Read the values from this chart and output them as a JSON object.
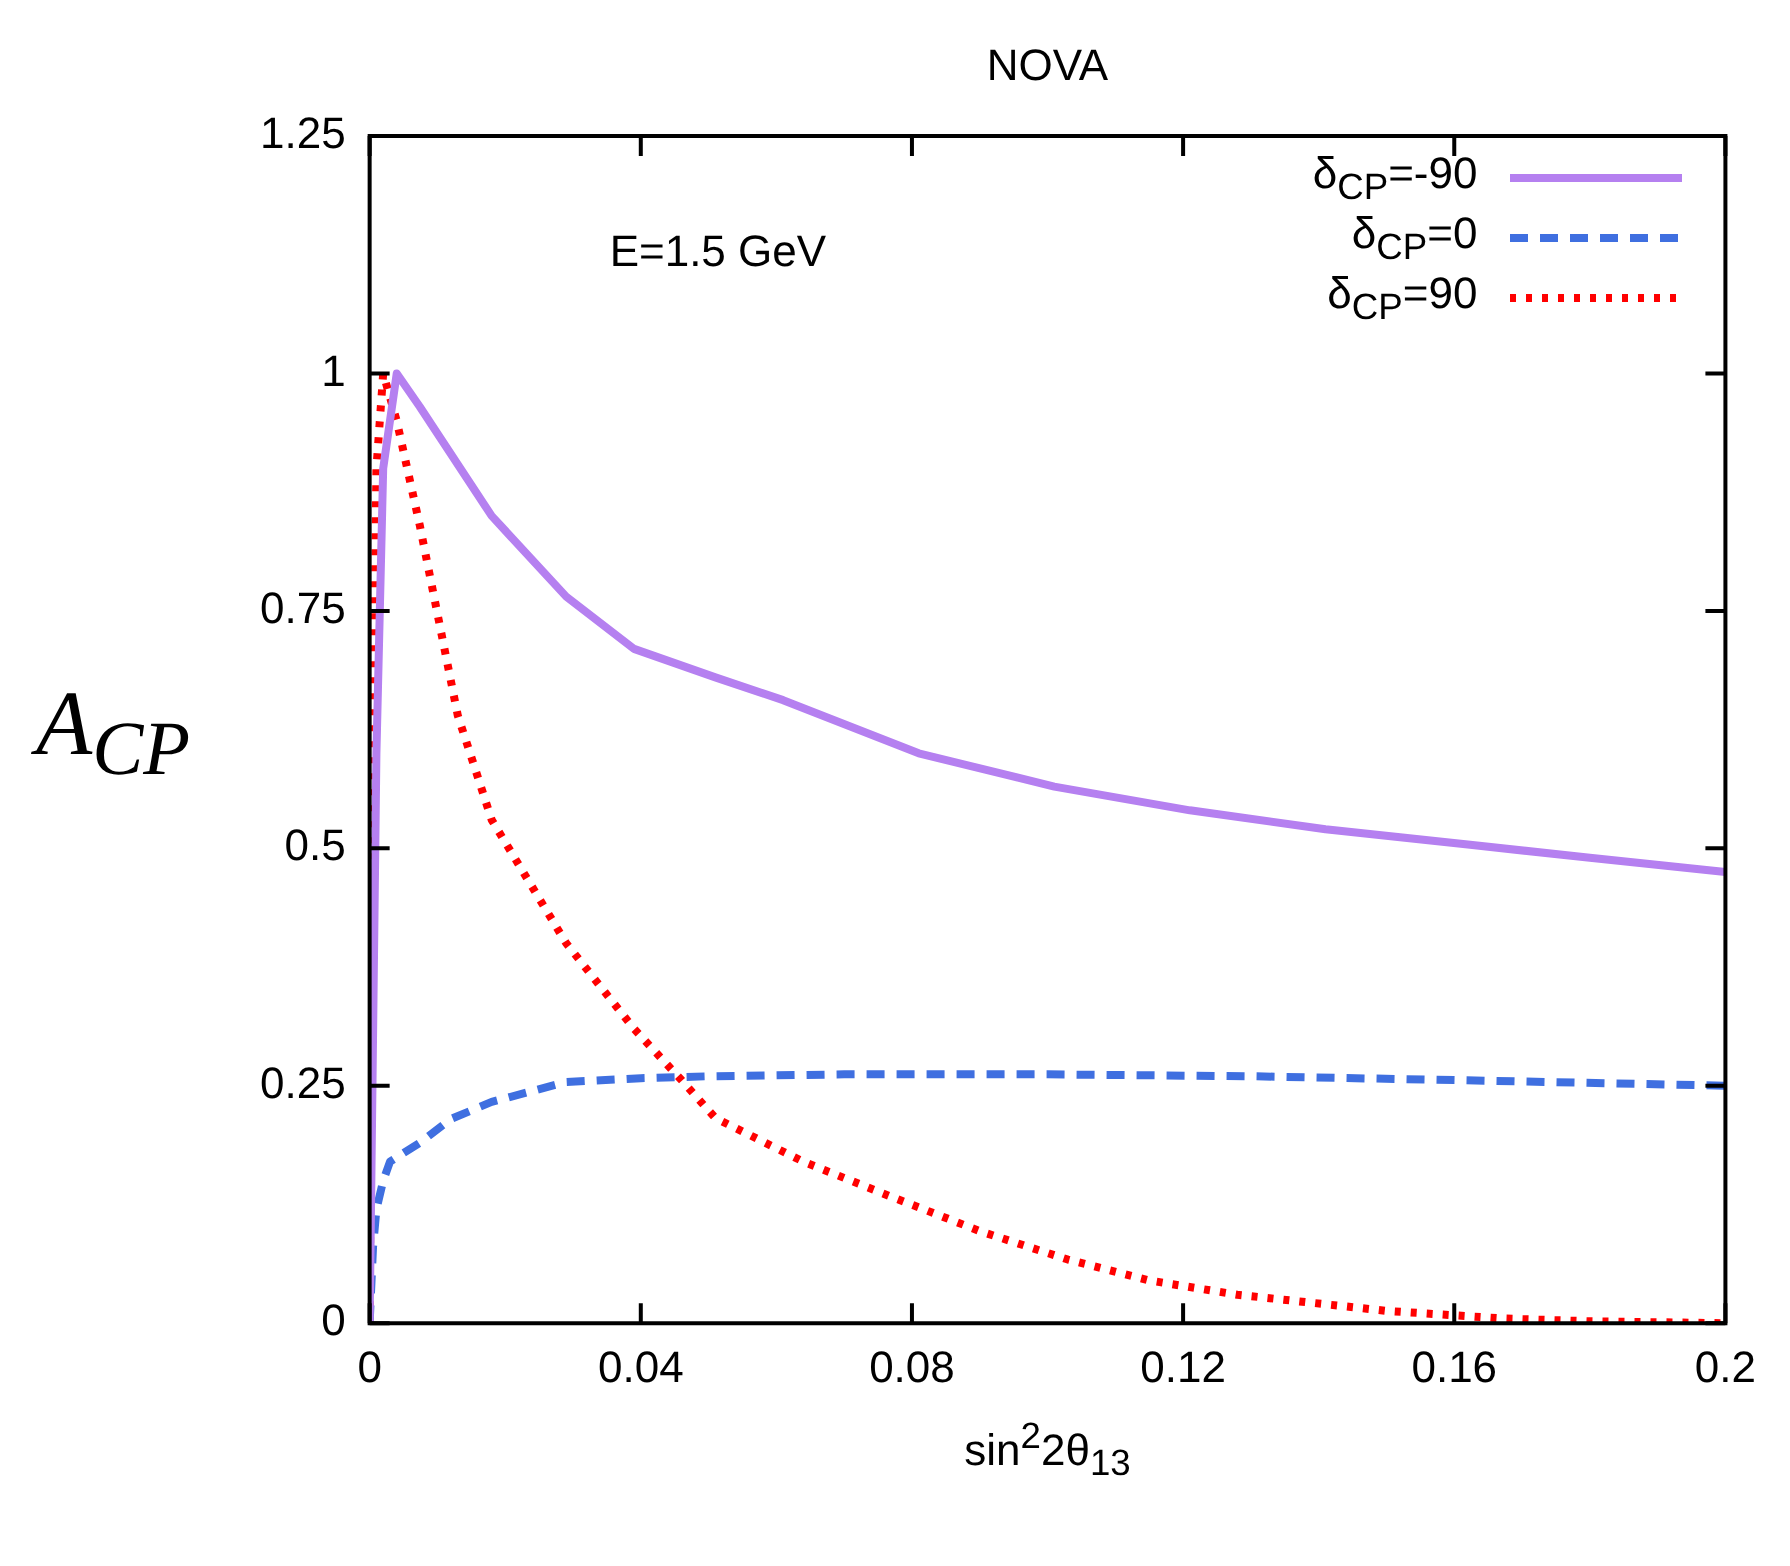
{
  "chart_data": {
    "type": "line",
    "title": "NOVA",
    "xlabel": "sin$^{2}$2θ$_{13}$",
    "ylabel": "A$_{CP}$",
    "annotations": [
      "E=1.5 GeV"
    ],
    "xlim": [
      0,
      0.2
    ],
    "xticks": [
      0,
      0.04,
      0.08,
      0.12,
      0.16,
      0.2
    ],
    "ylim": [
      0,
      1.25
    ],
    "yticks": [
      0,
      0.25,
      0.5,
      0.75,
      1,
      1.25
    ],
    "grid": false,
    "legend": "top right",
    "marker": "none",
    "series": [
      {
        "name": "δ$_{CP}$=-90",
        "color": "#b580f0",
        "line_style": "solid",
        "x": [
          0,
          0.001,
          0.002,
          0.004,
          0.0074,
          0.018,
          0.029,
          0.039,
          0.051,
          0.061,
          0.081,
          0.101,
          0.121,
          0.141,
          0.162,
          0.18,
          0.2
        ],
        "values": [
          0,
          0.6,
          0.9,
          1.0,
          0.965,
          0.85,
          0.765,
          0.71,
          0.68,
          0.656,
          0.6,
          0.565,
          0.54,
          0.52,
          0.504,
          0.49,
          0.475
        ]
      },
      {
        "name": "δ$_{CP}$=0",
        "color": "#3f6fe0",
        "line_style": "dashed",
        "x": [
          0,
          0.0005,
          0.001,
          0.002,
          0.003,
          0.0074,
          0.012,
          0.018,
          0.029,
          0.04,
          0.05,
          0.07,
          0.1,
          0.13,
          0.16,
          0.2
        ],
        "values": [
          0,
          0.08,
          0.12,
          0.15,
          0.17,
          0.19,
          0.215,
          0.233,
          0.254,
          0.258,
          0.26,
          0.262,
          0.262,
          0.26,
          0.256,
          0.25
        ]
      },
      {
        "name": "δ$_{CP}$=90",
        "color": "#ff0000",
        "line_style": "dotted",
        "x": [
          0,
          0.0005,
          0.001,
          0.002,
          0.004,
          0.0074,
          0.013,
          0.018,
          0.029,
          0.039,
          0.046,
          0.051,
          0.064,
          0.077,
          0.09,
          0.103,
          0.115,
          0.128,
          0.15,
          0.167,
          0.18,
          0.2
        ],
        "values": [
          0,
          0.6,
          0.9,
          1.0,
          0.95,
          0.84,
          0.64,
          0.53,
          0.4,
          0.31,
          0.256,
          0.216,
          0.17,
          0.133,
          0.097,
          0.067,
          0.045,
          0.03,
          0.013,
          0.005,
          0.002,
          0
        ]
      }
    ]
  }
}
